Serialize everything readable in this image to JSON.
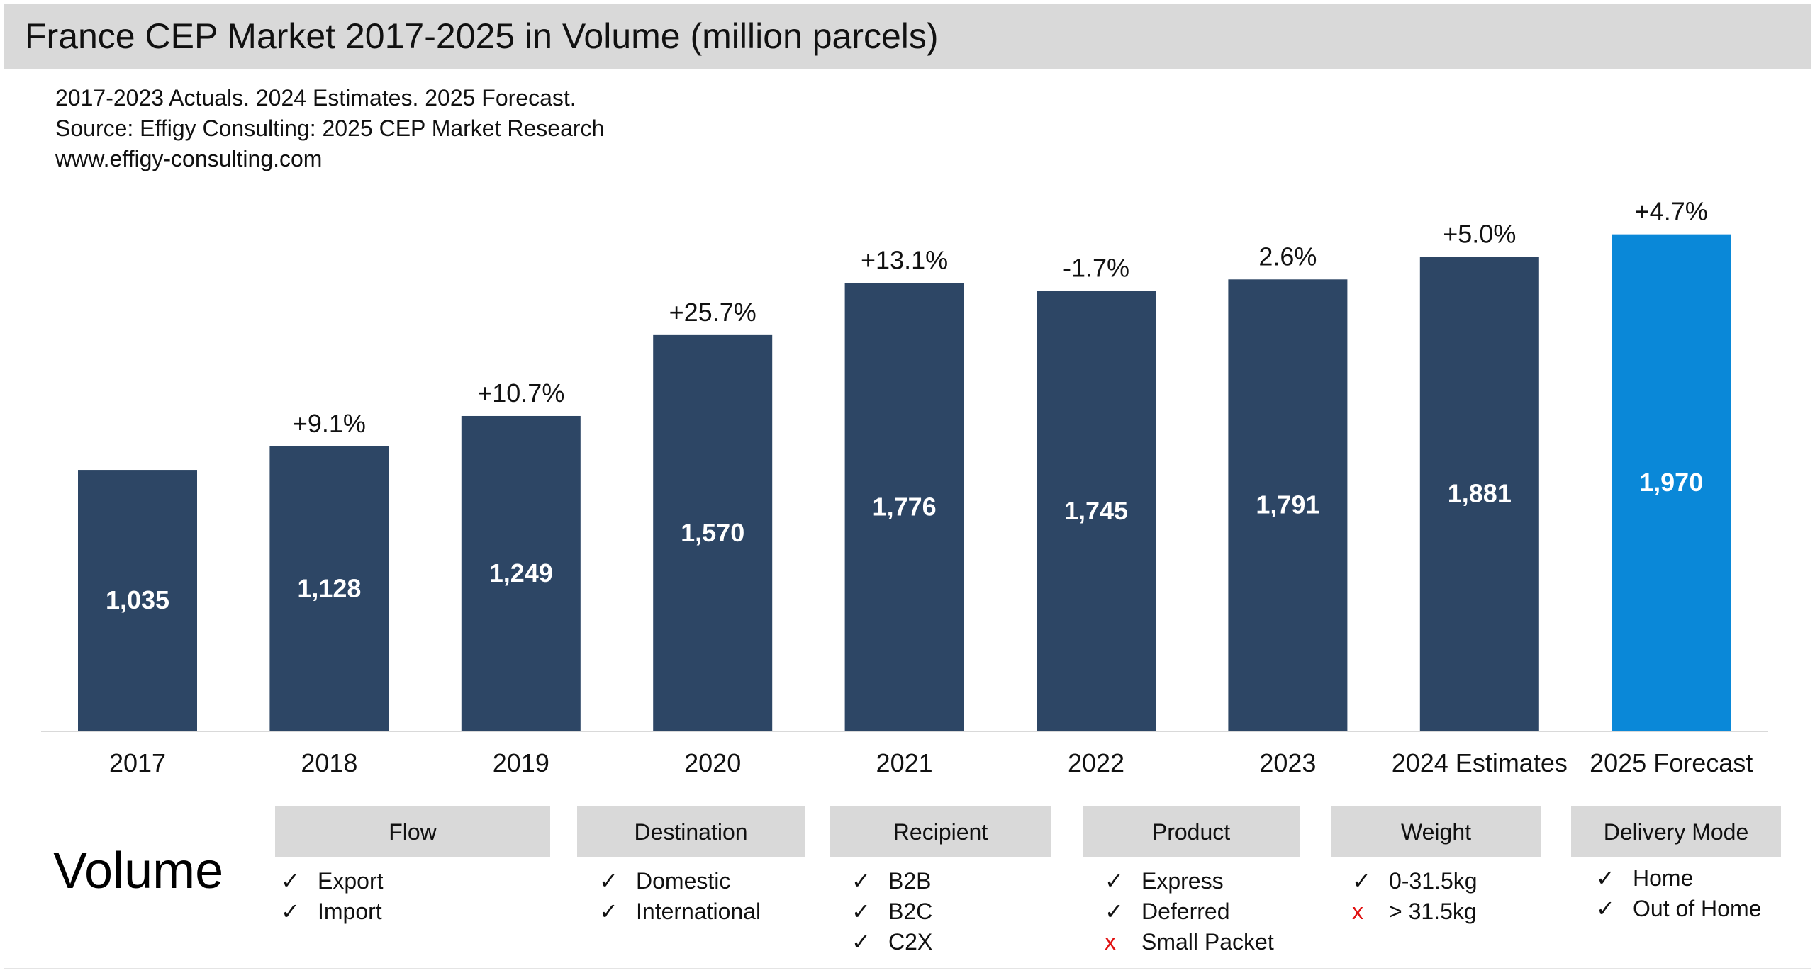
{
  "title": "France CEP Market 2017-2025 in Volume (million parcels)",
  "subtitle_lines": [
    "2017-2023 Actuals. 2024 Estimates. 2025 Forecast.",
    "Source: Effigy Consulting: 2025 CEP Market Research",
    "www.effigy-consulting.com"
  ],
  "chart_data": {
    "type": "bar",
    "title": "France CEP Market 2017-2025 in Volume (million parcels)",
    "xlabel": "",
    "ylabel": "",
    "categories": [
      "2017",
      "2018",
      "2019",
      "2020",
      "2021",
      "2022",
      "2023",
      "2024 Estimates",
      "2025 Forecast"
    ],
    "values": [
      1035,
      1128,
      1249,
      1570,
      1776,
      1745,
      1791,
      1881,
      1970
    ],
    "value_labels": [
      "1,035",
      "1,128",
      "1,249",
      "1,570",
      "1,776",
      "1,745",
      "1,791",
      "1,881",
      "1,970"
    ],
    "growth_labels": [
      "",
      "+9.1%",
      "+10.7%",
      "+25.7%",
      "+13.1%",
      "-1.7%",
      "2.6%",
      "+5.0%",
      "+4.7%"
    ],
    "ylim": [
      0,
      2000
    ],
    "grid": false,
    "colors": {
      "actual": "#2d4665",
      "forecast": "#0a88d8",
      "value_label": "#ffffff",
      "axis": "#d9d9d9"
    },
    "highlight_index": 8
  },
  "criteria_label": "Volume",
  "criteria": [
    {
      "name": "Flow",
      "items": [
        {
          "mark": "check",
          "text": "Export"
        },
        {
          "mark": "check",
          "text": "Import"
        }
      ]
    },
    {
      "name": "Destination",
      "items": [
        {
          "mark": "check",
          "text": "Domestic"
        },
        {
          "mark": "check",
          "text": "International"
        }
      ]
    },
    {
      "name": "Recipient",
      "items": [
        {
          "mark": "check",
          "text": "B2B"
        },
        {
          "mark": "check",
          "text": "B2C"
        },
        {
          "mark": "check",
          "text": "C2X"
        }
      ]
    },
    {
      "name": "Product",
      "items": [
        {
          "mark": "check",
          "text": "Express"
        },
        {
          "mark": "check",
          "text": "Deferred"
        },
        {
          "mark": "cross",
          "text": "Small Packet"
        }
      ]
    },
    {
      "name": "Weight",
      "items": [
        {
          "mark": "check",
          "text": "0-31.5kg"
        },
        {
          "mark": "cross",
          "text": "> 31.5kg"
        }
      ]
    },
    {
      "name": "Delivery Mode",
      "items": [
        {
          "mark": "check",
          "text": "Home"
        },
        {
          "mark": "check",
          "text": "Out of Home"
        }
      ]
    }
  ],
  "marks": {
    "check": "✓",
    "cross": "x"
  }
}
